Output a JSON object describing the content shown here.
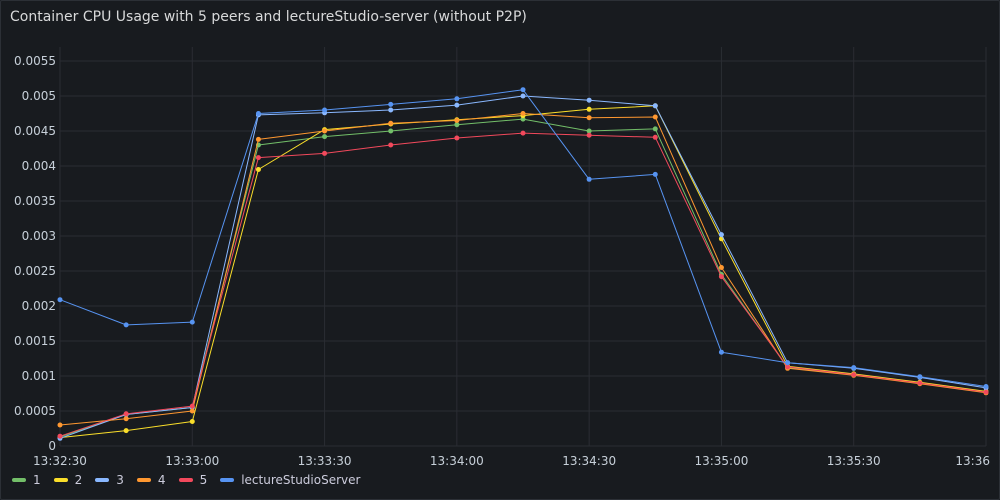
{
  "panel": {
    "title": "Container CPU Usage with 5 peers and lectureStudio-server (without P2P)"
  },
  "chart_data": {
    "type": "line",
    "title": "Container CPU Usage with 5 peers and lectureStudio-server (without P2P)",
    "xlabel": "",
    "ylabel": "",
    "x": [
      "13:32:30",
      "13:32:45",
      "13:33:00",
      "13:33:15",
      "13:33:30",
      "13:33:45",
      "13:34:00",
      "13:34:15",
      "13:34:30",
      "13:34:45",
      "13:35:00",
      "13:35:15",
      "13:35:30",
      "13:35:45",
      "13:36:00"
    ],
    "x_ticks": [
      "13:32:30",
      "13:33:00",
      "13:33:30",
      "13:34:00",
      "13:34:30",
      "13:35:00",
      "13:35:30",
      "13:36"
    ],
    "y_ticks": [
      "0",
      "0.0005",
      "0.001",
      "0.0015",
      "0.002",
      "0.0025",
      "0.003",
      "0.0035",
      "0.004",
      "0.0045",
      "0.005",
      "0.0055"
    ],
    "ylim": [
      0,
      0.0057
    ],
    "grid": true,
    "legend_position": "bottom-left",
    "series": [
      {
        "name": "1",
        "color": "#73bf69",
        "values": [
          0.00013,
          0.00045,
          0.00055,
          0.0043,
          0.00442,
          0.0045,
          0.00459,
          0.00467,
          0.0045,
          0.00453,
          0.00245,
          0.00112,
          0.00102,
          0.0009,
          0.00077
        ]
      },
      {
        "name": "2",
        "color": "#fade2a",
        "values": [
          0.00012,
          0.00022,
          0.00035,
          0.00395,
          0.00452,
          0.0046,
          0.00466,
          0.00472,
          0.00481,
          0.00486,
          0.00296,
          0.00114,
          0.00103,
          0.00091,
          0.00078
        ]
      },
      {
        "name": "3",
        "color": "#8ab8ff",
        "values": [
          0.00011,
          0.00045,
          0.00055,
          0.00473,
          0.00476,
          0.0048,
          0.00487,
          0.005,
          0.00494,
          0.00486,
          0.00302,
          0.00119,
          0.00111,
          0.00098,
          0.00083
        ]
      },
      {
        "name": "4",
        "color": "#ff9830",
        "values": [
          0.0003,
          0.00039,
          0.0005,
          0.00438,
          0.0045,
          0.00461,
          0.00465,
          0.00475,
          0.00469,
          0.0047,
          0.00255,
          0.00111,
          0.00101,
          0.00089,
          0.00076
        ]
      },
      {
        "name": "5",
        "color": "#f2495c",
        "values": [
          0.00014,
          0.00046,
          0.00057,
          0.00412,
          0.00418,
          0.0043,
          0.0044,
          0.00447,
          0.00444,
          0.00441,
          0.00242,
          0.00113,
          0.00102,
          0.0009,
          0.00077
        ]
      },
      {
        "name": "lectureStudioServer",
        "color": "#5794f2",
        "values": [
          0.00209,
          0.00173,
          0.00177,
          0.00475,
          0.0048,
          0.00488,
          0.00496,
          0.00509,
          0.00381,
          0.00388,
          0.00134,
          0.00119,
          0.00112,
          0.00099,
          0.00085
        ]
      }
    ]
  }
}
